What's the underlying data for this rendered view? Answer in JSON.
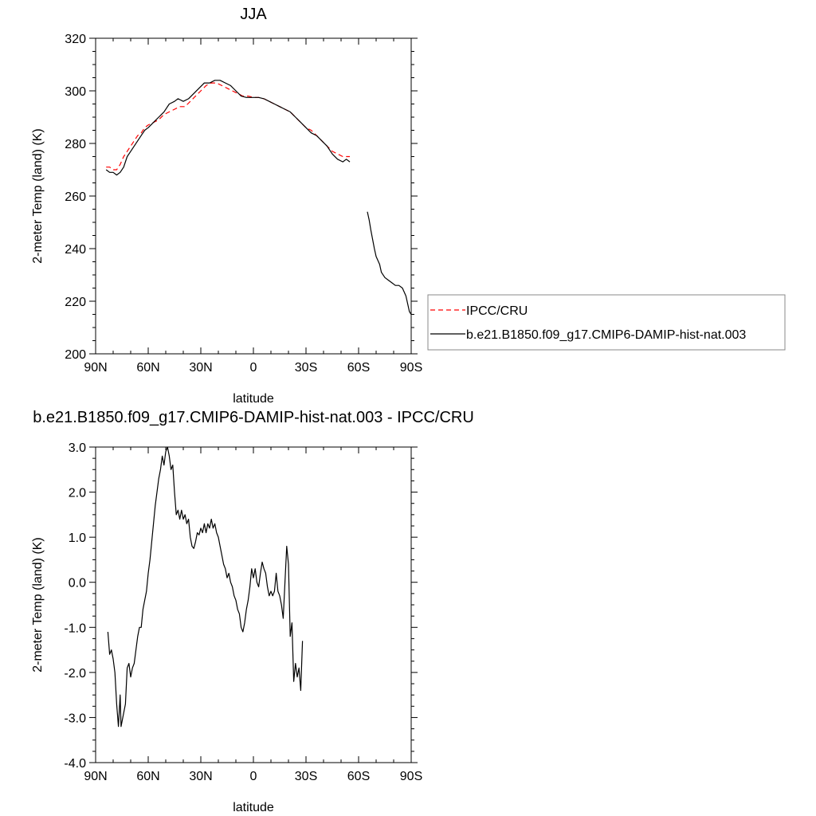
{
  "chart_data": [
    {
      "type": "line",
      "title": "JJA",
      "xlabel": "latitude",
      "ylabel": "2-meter Temp (land) (K)",
      "x_domain": [
        90,
        -90
      ],
      "x_ticks": [
        90,
        60,
        30,
        0,
        -30,
        -60,
        -90
      ],
      "x_tick_labels": [
        "90N",
        "60N",
        "30N",
        "0",
        "30S",
        "60S",
        "90S"
      ],
      "ylim": [
        200,
        320
      ],
      "y_ticks": [
        200,
        220,
        240,
        260,
        280,
        300,
        320
      ],
      "y_tick_labels": [
        "200",
        "220",
        "240",
        "260",
        "280",
        "300",
        "320"
      ],
      "legend_position": "right",
      "series": [
        {
          "name": "IPCC/CRU",
          "color": "#ff0000",
          "dash": "dashed",
          "segments": [
            [
              [
                84,
                271
              ],
              [
                82,
                271
              ],
              [
                80,
                270
              ],
              [
                78,
                270
              ],
              [
                76,
                272
              ],
              [
                74,
                275
              ],
              [
                72,
                277
              ],
              [
                70,
                279
              ],
              [
                68,
                281
              ],
              [
                66,
                283
              ],
              [
                64,
                284
              ],
              [
                62,
                286
              ],
              [
                60,
                287
              ],
              [
                57,
                288
              ],
              [
                54,
                289
              ],
              [
                51,
                291
              ],
              [
                48,
                292
              ],
              [
                45,
                293
              ],
              [
                42,
                294
              ],
              [
                39,
                294
              ],
              [
                36,
                296
              ],
              [
                33,
                298
              ],
              [
                30,
                300
              ],
              [
                27,
                302
              ],
              [
                24,
                303
              ],
              [
                21,
                303
              ],
              [
                18,
                302
              ],
              [
                15,
                301
              ],
              [
                12,
                300
              ],
              [
                9,
                299
              ],
              [
                6,
                298
              ],
              [
                3,
                298
              ],
              [
                0,
                297.5
              ],
              [
                -3,
                297.5
              ],
              [
                -6,
                297
              ],
              [
                -9,
                296
              ],
              [
                -12,
                295
              ],
              [
                -15,
                294
              ],
              [
                -18,
                293
              ],
              [
                -21,
                292
              ],
              [
                -24,
                290
              ],
              [
                -27,
                288
              ],
              [
                -30,
                286
              ],
              [
                -33,
                285
              ],
              [
                -36,
                283
              ],
              [
                -39,
                281
              ],
              [
                -42,
                279
              ],
              [
                -45,
                277
              ],
              [
                -48,
                276
              ],
              [
                -51,
                275
              ],
              [
                -54,
                275
              ],
              [
                -55,
                275
              ]
            ]
          ]
        },
        {
          "name": "b.e21.B1850.f09_g17.CMIP6-DAMIP-hist-nat.003",
          "color": "#000000",
          "dash": "solid",
          "segments": [
            [
              [
                84,
                270
              ],
              [
                82,
                269
              ],
              [
                80,
                269
              ],
              [
                78,
                268
              ],
              [
                76,
                269
              ],
              [
                74,
                271
              ],
              [
                72,
                275
              ],
              [
                70,
                277
              ],
              [
                68,
                279
              ],
              [
                66,
                281
              ],
              [
                64,
                283
              ],
              [
                62,
                285
              ],
              [
                60,
                286
              ],
              [
                57,
                288
              ],
              [
                54,
                290
              ],
              [
                51,
                292
              ],
              [
                48,
                295
              ],
              [
                45,
                296
              ],
              [
                43,
                297
              ],
              [
                40,
                296
              ],
              [
                37,
                297
              ],
              [
                34,
                299
              ],
              [
                31,
                301
              ],
              [
                28,
                303
              ],
              [
                25,
                303
              ],
              [
                22,
                304
              ],
              [
                19,
                304
              ],
              [
                16,
                303
              ],
              [
                13,
                302
              ],
              [
                10,
                300
              ],
              [
                7,
                298
              ],
              [
                4,
                297.5
              ],
              [
                0,
                297.5
              ],
              [
                -3,
                297.5
              ],
              [
                -6,
                297
              ],
              [
                -9,
                296
              ],
              [
                -12,
                295
              ],
              [
                -15,
                294
              ],
              [
                -18,
                293
              ],
              [
                -21,
                292
              ],
              [
                -24,
                290
              ],
              [
                -27,
                288
              ],
              [
                -30,
                286
              ],
              [
                -33,
                284
              ],
              [
                -36,
                283
              ],
              [
                -39,
                281
              ],
              [
                -42,
                279
              ],
              [
                -45,
                276
              ],
              [
                -48,
                274
              ],
              [
                -51,
                273
              ],
              [
                -53,
                274
              ],
              [
                -55,
                273
              ]
            ],
            [
              [
                -65,
                254
              ],
              [
                -66,
                251
              ],
              [
                -67,
                247
              ],
              [
                -69,
                240
              ],
              [
                -70,
                237
              ],
              [
                -72,
                234
              ],
              [
                -73,
                231
              ],
              [
                -75,
                229
              ],
              [
                -77,
                228
              ],
              [
                -79,
                227
              ],
              [
                -81,
                226
              ],
              [
                -83,
                226
              ],
              [
                -85,
                225
              ],
              [
                -87,
                222
              ],
              [
                -89,
                216
              ],
              [
                -90,
                215
              ]
            ]
          ]
        }
      ]
    },
    {
      "type": "line",
      "title": "b.e21.B1850.f09_g17.CMIP6-DAMIP-hist-nat.003 - IPCC/CRU",
      "xlabel": "latitude",
      "ylabel": "2-meter Temp (land) (K)",
      "x_domain": [
        90,
        -90
      ],
      "x_ticks": [
        90,
        60,
        30,
        0,
        -30,
        -60,
        -90
      ],
      "x_tick_labels": [
        "90N",
        "60N",
        "30N",
        "0",
        "30S",
        "60S",
        "90S"
      ],
      "ylim": [
        -4,
        3
      ],
      "y_ticks": [
        -4,
        -3,
        -2,
        -1,
        0,
        1,
        2,
        3
      ],
      "y_tick_labels": [
        "-4.0",
        "-3.0",
        "-2.0",
        "-1.0",
        "0.0",
        "1.0",
        "2.0",
        "3.0"
      ],
      "series": [
        {
          "name": "",
          "color": "#000000",
          "dash": "solid",
          "segments": [
            [
              [
                83,
                -1.1
              ],
              [
                82,
                -1.6
              ],
              [
                81,
                -1.5
              ],
              [
                80,
                -1.7
              ],
              [
                79,
                -2.0
              ],
              [
                78,
                -2.7
              ],
              [
                77,
                -3.2
              ],
              [
                76,
                -2.5
              ],
              [
                75.5,
                -3.2
              ],
              [
                75,
                -3.1
              ],
              [
                74,
                -2.9
              ],
              [
                73,
                -2.7
              ],
              [
                72,
                -1.9
              ],
              [
                71,
                -1.8
              ],
              [
                70,
                -2.1
              ],
              [
                69,
                -1.9
              ],
              [
                68,
                -1.8
              ],
              [
                67,
                -1.5
              ],
              [
                66,
                -1.2
              ],
              [
                65,
                -1.0
              ],
              [
                64,
                -1.0
              ],
              [
                63,
                -0.6
              ],
              [
                62,
                -0.4
              ],
              [
                61,
                -0.2
              ],
              [
                60,
                0.2
              ],
              [
                59,
                0.5
              ],
              [
                58,
                0.9
              ],
              [
                57,
                1.3
              ],
              [
                56,
                1.7
              ],
              [
                55,
                2.0
              ],
              [
                54,
                2.3
              ],
              [
                53,
                2.5
              ],
              [
                52,
                2.8
              ],
              [
                51,
                2.6
              ],
              [
                50,
                2.9
              ],
              [
                49,
                3.0
              ],
              [
                48,
                2.8
              ],
              [
                47,
                2.5
              ],
              [
                46,
                2.6
              ],
              [
                45,
                2.0
              ],
              [
                44,
                1.5
              ],
              [
                43,
                1.6
              ],
              [
                42,
                1.4
              ],
              [
                41,
                1.6
              ],
              [
                40,
                1.4
              ],
              [
                39,
                1.5
              ],
              [
                38,
                1.3
              ],
              [
                37,
                1.4
              ],
              [
                36,
                1.0
              ],
              [
                35,
                0.8
              ],
              [
                34,
                0.75
              ],
              [
                33,
                0.9
              ],
              [
                32,
                1.1
              ],
              [
                31,
                1.05
              ],
              [
                30,
                1.2
              ],
              [
                29,
                1.1
              ],
              [
                28,
                1.3
              ],
              [
                27,
                1.1
              ],
              [
                26,
                1.3
              ],
              [
                25,
                1.2
              ],
              [
                24,
                1.4
              ],
              [
                23,
                1.2
              ],
              [
                22,
                1.3
              ],
              [
                21,
                1.1
              ],
              [
                20,
                1.0
              ],
              [
                19,
                0.8
              ],
              [
                18,
                0.6
              ],
              [
                17,
                0.4
              ],
              [
                16,
                0.3
              ],
              [
                15,
                0.1
              ],
              [
                14,
                0.2
              ],
              [
                13,
                0.0
              ],
              [
                12,
                -0.1
              ],
              [
                11,
                -0.3
              ],
              [
                10,
                -0.4
              ],
              [
                9,
                -0.6
              ],
              [
                8,
                -0.7
              ],
              [
                7,
                -1.0
              ],
              [
                6,
                -1.1
              ],
              [
                5,
                -0.9
              ],
              [
                4,
                -0.6
              ],
              [
                3,
                -0.4
              ],
              [
                2,
                -0.1
              ],
              [
                1,
                0.3
              ],
              [
                0,
                0.1
              ],
              [
                -1,
                0.3
              ],
              [
                -2,
                0.0
              ],
              [
                -3,
                -0.1
              ],
              [
                -4,
                0.2
              ],
              [
                -5,
                0.45
              ],
              [
                -6,
                0.3
              ],
              [
                -7,
                0.2
              ],
              [
                -8,
                -0.1
              ],
              [
                -9,
                -0.3
              ],
              [
                -10,
                -0.2
              ],
              [
                -11,
                -0.3
              ],
              [
                -12,
                -0.2
              ],
              [
                -13,
                0.2
              ],
              [
                -14,
                -0.2
              ],
              [
                -15,
                -0.3
              ],
              [
                -16,
                -0.5
              ],
              [
                -17,
                -0.8
              ],
              [
                -18,
                0.0
              ],
              [
                -19,
                0.8
              ],
              [
                -20,
                0.4
              ],
              [
                -21,
                -1.2
              ],
              [
                -22,
                -0.9
              ],
              [
                -23,
                -2.2
              ],
              [
                -24,
                -1.8
              ],
              [
                -25,
                -2.1
              ],
              [
                -26,
                -1.9
              ],
              [
                -27,
                -2.4
              ],
              [
                -28,
                -1.3
              ]
            ]
          ]
        }
      ]
    }
  ]
}
